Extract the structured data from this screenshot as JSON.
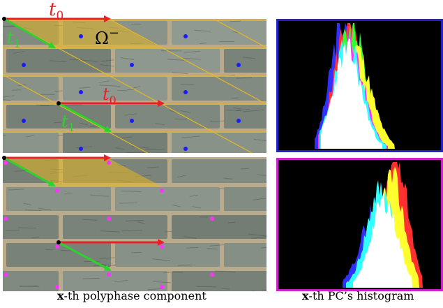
{
  "figure": {
    "labels": {
      "t0": "t",
      "t0_sub": "0",
      "t1": "t",
      "t1_sub": "1",
      "omega": "Ω",
      "omega_sup": "−"
    },
    "captions": {
      "left_bold": "x",
      "left_rest": "-th polyphase component",
      "right_bold": "x",
      "right_rest": "-th PC’s histogram"
    },
    "colors": {
      "t0_arrow": "#e8202a",
      "t1_arrow": "#2ed12e",
      "top_dots": "#1a1aff",
      "bottom_dots": "#ff33ff",
      "top_frame": "#2222cc",
      "bottom_frame": "#cc22cc",
      "region": "#e6b820",
      "mortar": "#b9aa8c",
      "brick": "#7f8a7d"
    }
  }
}
